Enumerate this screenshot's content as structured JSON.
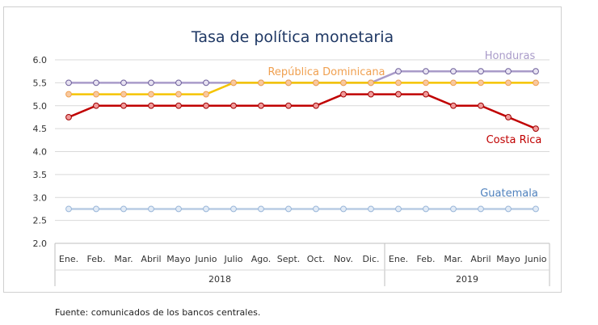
{
  "chart_data": {
    "type": "line",
    "title": "Tasa de política monetaria",
    "xlabel": "",
    "ylabel": "",
    "ylim": [
      2.0,
      6.0
    ],
    "yticks": [
      "2.0",
      "2.5",
      "3.0",
      "3.5",
      "4.0",
      "4.5",
      "5.0",
      "5.5",
      "6.0"
    ],
    "categories": [
      "Ene.",
      "Feb.",
      "Mar.",
      "Abril",
      "Mayo",
      "Junio",
      "Julio",
      "Ago.",
      "Sept.",
      "Oct.",
      "Nov.",
      "Dic.",
      "Ene.",
      "Feb.",
      "Mar.",
      "Abril",
      "Mayo",
      "Junio"
    ],
    "year_groups": [
      {
        "label": "2018",
        "start": 0,
        "end": 11
      },
      {
        "label": "2019",
        "start": 12,
        "end": 17
      }
    ],
    "grid": true,
    "series": [
      {
        "name": "Honduras",
        "color": "#a99bc9",
        "values": [
          5.5,
          5.5,
          5.5,
          5.5,
          5.5,
          5.5,
          5.5,
          5.5,
          5.5,
          5.5,
          5.5,
          5.5,
          5.75,
          5.75,
          5.75,
          5.75,
          5.75,
          5.75
        ]
      },
      {
        "name": "República Dominicana",
        "color": "#f5c400",
        "values": [
          5.25,
          5.25,
          5.25,
          5.25,
          5.25,
          5.25,
          5.5,
          5.5,
          5.5,
          5.5,
          5.5,
          5.5,
          5.5,
          5.5,
          5.5,
          5.5,
          5.5,
          5.5
        ]
      },
      {
        "name": "Costa Rica",
        "color": "#c00000",
        "values": [
          4.75,
          5.0,
          5.0,
          5.0,
          5.0,
          5.0,
          5.0,
          5.0,
          5.0,
          5.0,
          5.25,
          5.25,
          5.25,
          5.25,
          5.0,
          5.0,
          4.75,
          4.5
        ]
      },
      {
        "name": "Guatemala",
        "color": "#b8cce4",
        "values": [
          2.75,
          2.75,
          2.75,
          2.75,
          2.75,
          2.75,
          2.75,
          2.75,
          2.75,
          2.75,
          2.75,
          2.75,
          2.75,
          2.75,
          2.75,
          2.75,
          2.75,
          2.75
        ]
      }
    ],
    "labels": {
      "honduras_color": "#a99bc9",
      "republica_color": "#f0a050",
      "costarica_color": "#c00000",
      "guatemala_color": "#4f81bd"
    }
  },
  "footer": {
    "source": "Fuente: comunicados de los bancos centrales."
  }
}
